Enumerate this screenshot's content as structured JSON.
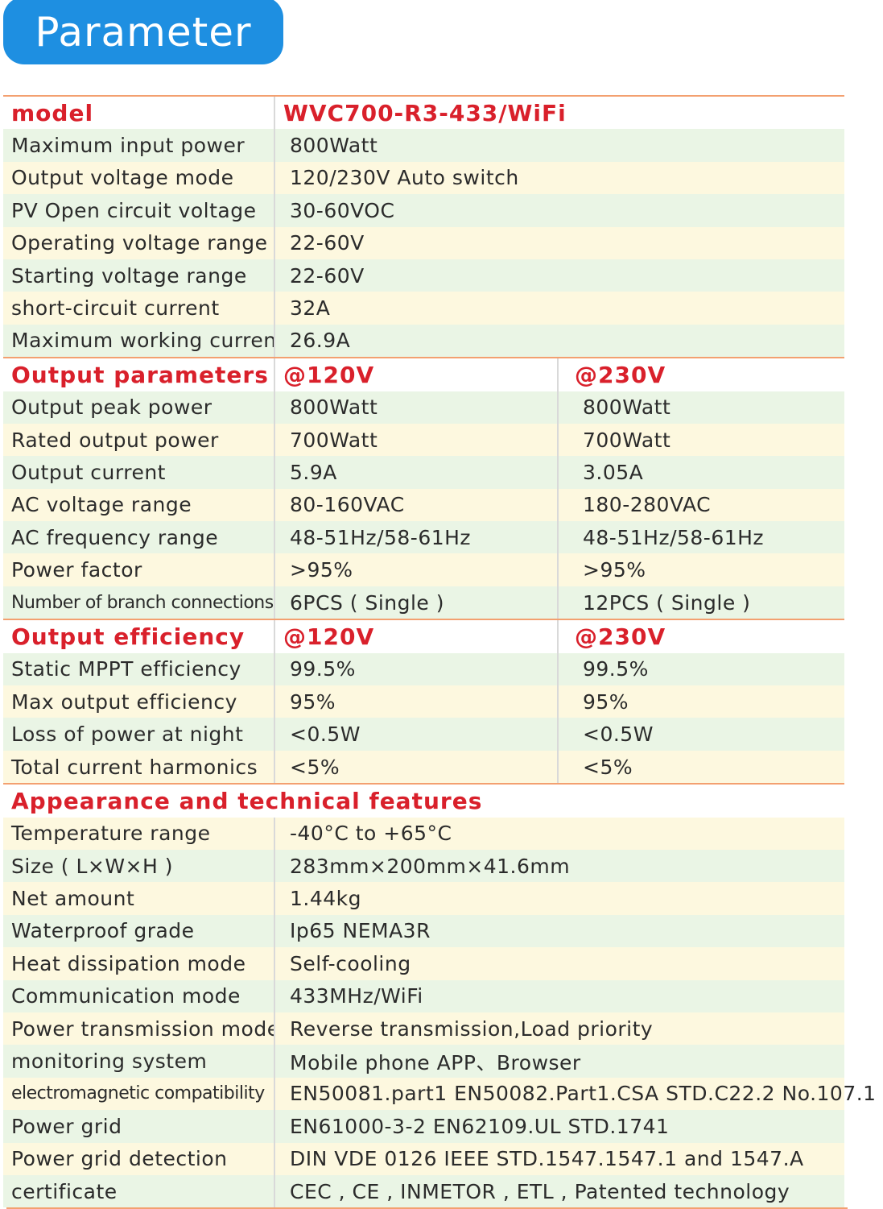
{
  "title": "Parameter",
  "model": {
    "label": "model",
    "value": "WVC700-R3-433/WiFi"
  },
  "input_rows": [
    {
      "label": "Maximum input power",
      "value": "800Watt"
    },
    {
      "label": "Output voltage mode",
      "value": "120/230V Auto switch"
    },
    {
      "label": "PV Open circuit voltage",
      "value": "30-60VOC"
    },
    {
      "label": "Operating voltage range",
      "value": "22-60V"
    },
    {
      "label": "Starting voltage range",
      "value": "22-60V"
    },
    {
      "label": "short-circuit current",
      "value": "32A"
    },
    {
      "label": "Maximum working current",
      "value": "26.9A"
    }
  ],
  "output_params": {
    "header": {
      "label": "Output parameters",
      "col1": "@120V",
      "col2": "@230V"
    },
    "rows": [
      {
        "label": "Output peak power",
        "v120": "800Watt",
        "v230": "800Watt"
      },
      {
        "label": "Rated output power",
        "v120": "700Watt",
        "v230": "700Watt"
      },
      {
        "label": "Output current",
        "v120": "5.9A",
        "v230": "3.05A"
      },
      {
        "label": "AC voltage range",
        "v120": "80-160VAC",
        "v230": "180-280VAC"
      },
      {
        "label": "AC frequency range",
        "v120": "48-51Hz/58-61Hz",
        "v230": "48-51Hz/58-61Hz"
      },
      {
        "label": "Power factor",
        "v120": ">95%",
        "v230": ">95%"
      },
      {
        "label": "Number of branch connections",
        "v120": "6PCS ( Single )",
        "v230": "12PCS ( Single )"
      }
    ]
  },
  "output_eff": {
    "header": {
      "label": "Output efficiency",
      "col1": "@120V",
      "col2": "@230V"
    },
    "rows": [
      {
        "label": "Static MPPT efficiency",
        "v120": "99.5%",
        "v230": "99.5%"
      },
      {
        "label": "Max output efficiency",
        "v120": "95%",
        "v230": "95%"
      },
      {
        "label": "Loss of power at night",
        "v120": "<0.5W",
        "v230": "<0.5W"
      },
      {
        "label": "Total current harmonics",
        "v120": "<5%",
        "v230": "<5%"
      }
    ]
  },
  "features": {
    "header": "Appearance and technical features",
    "rows": [
      {
        "label": "Temperature range",
        "value": "-40°C to +65°C"
      },
      {
        "label": "Size ( L×W×H )",
        "value": "283mm×200mm×41.6mm"
      },
      {
        "label": "Net amount",
        "value": "1.44kg"
      },
      {
        "label": "Waterproof grade",
        "value": "Ip65 NEMA3R"
      },
      {
        "label": "Heat dissipation mode",
        "value": "Self-cooling"
      },
      {
        "label": "Communication mode",
        "value": "433MHz/WiFi"
      },
      {
        "label": "Power transmission mode",
        "value": "Reverse transmission,Load priority"
      },
      {
        "label": "monitoring system",
        "value": "Mobile phone APP、Browser"
      },
      {
        "label": "electromagnetic compatibility",
        "value": "EN50081.part1 EN50082.Part1.CSA STD.C22.2 No.107.1"
      },
      {
        "label": "Power grid",
        "value": "EN61000-3-2 EN62109.UL STD.1741"
      },
      {
        "label": "Power grid detection",
        "value": "DIN VDE 0126 IEEE STD.1547.1547.1 and 1547.A"
      },
      {
        "label": "certificate",
        "value": "CEC , CE , INMETOR , ETL , Patented technology"
      }
    ]
  },
  "colors": {
    "badge": "#1e8fe1",
    "header_text": "#d9202b",
    "rule": "#f3a070",
    "row_yellow": "#fdf8df",
    "row_green": "#eaf5e5"
  }
}
